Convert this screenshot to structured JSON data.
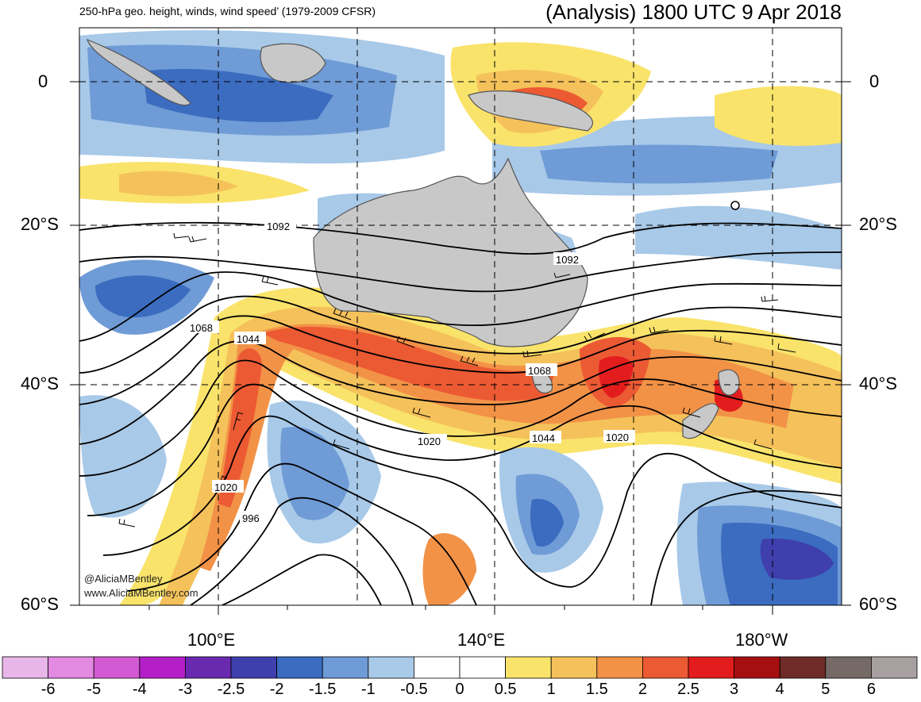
{
  "header": {
    "subtitle": "250-hPa geo. height, winds, wind speed’ (1979-2009 CFSR)",
    "title": "(Analysis) 1800 UTC 9 Apr 2018"
  },
  "axes": {
    "lat_labels": [
      "0",
      "20°S",
      "40°S",
      "60°S"
    ],
    "lon_labels": [
      "100°E",
      "140°E",
      "180°W"
    ]
  },
  "contour_labels": [
    "1092",
    "1092",
    "1068",
    "1068",
    "1044",
    "1044",
    "1020",
    "1020",
    "1020",
    "996"
  ],
  "credits": [
    "@AliciaMBentley",
    "www.AliciaMBentley.com"
  ],
  "colorbar": {
    "labels": [
      "-6",
      "-5",
      "-4",
      "-3",
      "-2.5",
      "-2",
      "-1.5",
      "-1",
      "-0.5",
      "0",
      "0.5",
      "1",
      "1.5",
      "2",
      "2.5",
      "3",
      "4",
      "5",
      "6"
    ],
    "colors": [
      "#e8b6e8",
      "#e38ae3",
      "#d45ad4",
      "#b41fc8",
      "#6a2ab0",
      "#3f3fae",
      "#3b6cc0",
      "#6f9bd6",
      "#a8c9e8",
      "#ffffff",
      "#ffffff",
      "#f9e36b",
      "#f5c15a",
      "#f29247",
      "#ec5a33",
      "#e31d1d",
      "#a60f0f",
      "#6e2b27",
      "#756a66",
      "#a8a0a0"
    ]
  },
  "colors": {
    "land": "#c8c8c8",
    "coast": "#555555"
  }
}
